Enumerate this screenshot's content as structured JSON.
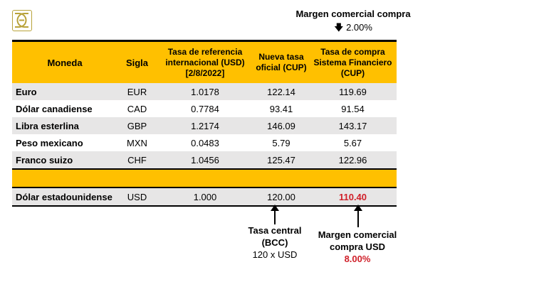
{
  "logo": {
    "text": "BE",
    "color": "#b8a23a"
  },
  "top_note": {
    "title": "Margen comercial compra",
    "value": "2.00%"
  },
  "table": {
    "headers": [
      "Moneda",
      "Sigla",
      "Tasa de referencia internacional (USD) [2/8/2022]",
      "Nueva tasa oficial (CUP)",
      "Tasa de compra Sistema Financiero (CUP)"
    ],
    "rows": [
      [
        "Euro",
        "EUR",
        "1.0178",
        "122.14",
        "119.69"
      ],
      [
        "Dólar canadiense",
        "CAD",
        "0.7784",
        "93.41",
        "91.54"
      ],
      [
        "Libra esterlina",
        "GBP",
        "1.2174",
        "146.09",
        "143.17"
      ],
      [
        "Peso mexicano",
        "MXN",
        "0.0483",
        "5.79",
        "5.67"
      ],
      [
        "Franco suizo",
        "CHF",
        "1.0456",
        "125.47",
        "122.96"
      ]
    ],
    "usd_row": [
      "Dólar estadounidense",
      "USD",
      "1.000",
      "120.00",
      "110.40"
    ]
  },
  "notes": {
    "central": {
      "title": "Tasa central (BCC)",
      "sub": "120 x USD"
    },
    "margin": {
      "title": "Margen comercial compra USD",
      "value": "8.00%"
    }
  },
  "colors": {
    "header": "#FFC000",
    "stripe": "#E7E6E6",
    "highlight": "#D0202A"
  }
}
